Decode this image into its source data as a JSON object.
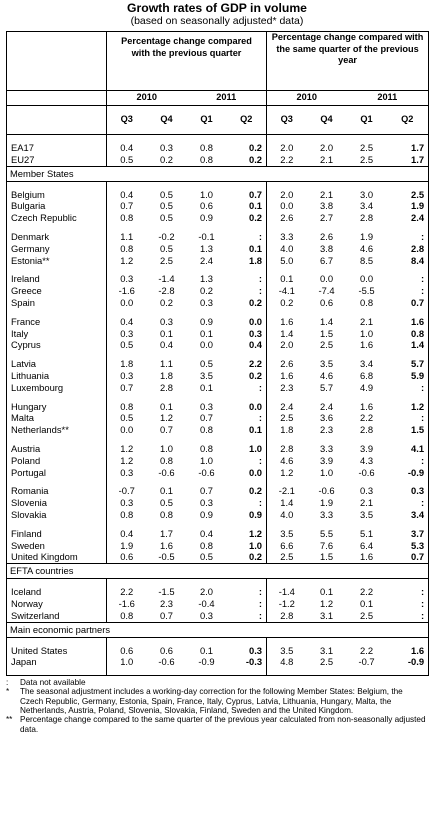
{
  "title": "Growth rates of GDP in volume",
  "subtitle": "(based on seasonally adjusted* data)",
  "headers": {
    "group1": "Percentage change compared with the previous quarter",
    "group2": "Percentage change compared with the same quarter of the previous year",
    "years": [
      "2010",
      "2011",
      "2010",
      "2011"
    ],
    "quarters": [
      "Q3",
      "Q4",
      "Q1",
      "Q2",
      "Q3",
      "Q4",
      "Q1",
      "Q2"
    ]
  },
  "sections": [
    {
      "label": "",
      "groups": [
        [
          {
            "name": "EA17",
            "v": [
              "0.4",
              "0.3",
              "0.8",
              "0.2",
              "2.0",
              "2.0",
              "2.5",
              "1.7"
            ]
          },
          {
            "name": "EU27",
            "v": [
              "0.5",
              "0.2",
              "0.8",
              "0.2",
              "2.2",
              "2.1",
              "2.5",
              "1.7"
            ]
          }
        ]
      ]
    },
    {
      "label": "Member States",
      "groups": [
        [
          {
            "name": "Belgium",
            "v": [
              "0.4",
              "0.5",
              "1.0",
              "0.7",
              "2.0",
              "2.1",
              "3.0",
              "2.5"
            ]
          },
          {
            "name": "Bulgaria",
            "v": [
              "0.7",
              "0.5",
              "0.6",
              "0.1",
              "0.0",
              "3.8",
              "3.4",
              "1.9"
            ]
          },
          {
            "name": "Czech Republic",
            "v": [
              "0.8",
              "0.5",
              "0.9",
              "0.2",
              "2.6",
              "2.7",
              "2.8",
              "2.4"
            ]
          }
        ],
        [
          {
            "name": "Denmark",
            "v": [
              "1.1",
              "-0.2",
              "-0.1",
              ":",
              "3.3",
              "2.6",
              "1.9",
              ":"
            ]
          },
          {
            "name": "Germany",
            "v": [
              "0.8",
              "0.5",
              "1.3",
              "0.1",
              "4.0",
              "3.8",
              "4.6",
              "2.8"
            ]
          },
          {
            "name": "Estonia**",
            "v": [
              "1.2",
              "2.5",
              "2.4",
              "1.8",
              "5.0",
              "6.7",
              "8.5",
              "8.4"
            ]
          }
        ],
        [
          {
            "name": "Ireland",
            "v": [
              "0.3",
              "-1.4",
              "1.3",
              ":",
              "0.1",
              "0.0",
              "0.0",
              ":"
            ]
          },
          {
            "name": "Greece",
            "v": [
              "-1.6",
              "-2.8",
              "0.2",
              ":",
              "-4.1",
              "-7.4",
              "-5.5",
              ":"
            ]
          },
          {
            "name": "Spain",
            "v": [
              "0.0",
              "0.2",
              "0.3",
              "0.2",
              "0.2",
              "0.6",
              "0.8",
              "0.7"
            ]
          }
        ],
        [
          {
            "name": "France",
            "v": [
              "0.4",
              "0.3",
              "0.9",
              "0.0",
              "1.6",
              "1.4",
              "2.1",
              "1.6"
            ]
          },
          {
            "name": "Italy",
            "v": [
              "0.3",
              "0.1",
              "0.1",
              "0.3",
              "1.4",
              "1.5",
              "1.0",
              "0.8"
            ]
          },
          {
            "name": "Cyprus",
            "v": [
              "0.5",
              "0.4",
              "0.0",
              "0.4",
              "2.0",
              "2.5",
              "1.6",
              "1.4"
            ]
          }
        ],
        [
          {
            "name": "Latvia",
            "v": [
              "1.8",
              "1.1",
              "0.5",
              "2.2",
              "2.6",
              "3.5",
              "3.4",
              "5.7"
            ]
          },
          {
            "name": "Lithuania",
            "v": [
              "0.3",
              "1.8",
              "3.5",
              "0.2",
              "1.6",
              "4.6",
              "6.8",
              "5.9"
            ]
          },
          {
            "name": "Luxembourg",
            "v": [
              "0.7",
              "2.8",
              "0.1",
              ":",
              "2.3",
              "5.7",
              "4.9",
              ":"
            ]
          }
        ],
        [
          {
            "name": "Hungary",
            "v": [
              "0.8",
              "0.1",
              "0.3",
              "0.0",
              "2.4",
              "2.4",
              "1.6",
              "1.2"
            ]
          },
          {
            "name": "Malta",
            "v": [
              "0.5",
              "1.2",
              "0.7",
              ":",
              "2.5",
              "3.6",
              "2.2",
              ":"
            ]
          },
          {
            "name": "Netherlands**",
            "v": [
              "0.0",
              "0.7",
              "0.8",
              "0.1",
              "1.8",
              "2.3",
              "2.8",
              "1.5"
            ]
          }
        ],
        [
          {
            "name": "Austria",
            "v": [
              "1.2",
              "1.0",
              "0.8",
              "1.0",
              "2.8",
              "3.3",
              "3.9",
              "4.1"
            ]
          },
          {
            "name": "Poland",
            "v": [
              "1.2",
              "0.8",
              "1.0",
              ":",
              "4.6",
              "3.9",
              "4.3",
              ":"
            ]
          },
          {
            "name": "Portugal",
            "v": [
              "0.3",
              "-0.6",
              "-0.6",
              "0.0",
              "1.2",
              "1.0",
              "-0.6",
              "-0.9"
            ]
          }
        ],
        [
          {
            "name": "Romania",
            "v": [
              "-0.7",
              "0.1",
              "0.7",
              "0.2",
              "-2.1",
              "-0.6",
              "0.3",
              "0.3"
            ]
          },
          {
            "name": "Slovenia",
            "v": [
              "0.3",
              "0.5",
              "0.3",
              ":",
              "1.4",
              "1.9",
              "2.1",
              ":"
            ]
          },
          {
            "name": "Slovakia",
            "v": [
              "0.8",
              "0.8",
              "0.9",
              "0.9",
              "4.0",
              "3.3",
              "3.5",
              "3.4"
            ]
          }
        ],
        [
          {
            "name": "Finland",
            "v": [
              "0.4",
              "1.7",
              "0.4",
              "1.2",
              "3.5",
              "5.5",
              "5.1",
              "3.7"
            ]
          },
          {
            "name": "Sweden",
            "v": [
              "1.9",
              "1.6",
              "0.8",
              "1.0",
              "6.6",
              "7.6",
              "6.4",
              "5.3"
            ]
          },
          {
            "name": "United Kingdom",
            "v": [
              "0.6",
              "-0.5",
              "0.5",
              "0.2",
              "2.5",
              "1.5",
              "1.6",
              "0.7"
            ]
          }
        ]
      ]
    },
    {
      "label": "EFTA countries",
      "groups": [
        [
          {
            "name": "Iceland",
            "v": [
              "2.2",
              "-1.5",
              "2.0",
              ":",
              "-1.4",
              "0.1",
              "2.2",
              ":"
            ]
          },
          {
            "name": "Norway",
            "v": [
              "-1.6",
              "2.3",
              "-0.4",
              ":",
              "-1.2",
              "1.2",
              "0.1",
              ":"
            ]
          },
          {
            "name": "Switzerland",
            "v": [
              "0.8",
              "0.7",
              "0.3",
              ":",
              "2.8",
              "3.1",
              "2.5",
              ":"
            ]
          }
        ]
      ]
    },
    {
      "label": "Main economic partners",
      "groups": [
        [
          {
            "name": "United States",
            "v": [
              "0.6",
              "0.6",
              "0.1",
              "0.3",
              "3.5",
              "3.1",
              "2.2",
              "1.6"
            ]
          },
          {
            "name": "Japan",
            "v": [
              "1.0",
              "-0.6",
              "-0.9",
              "-0.3",
              "4.8",
              "2.5",
              "-0.7",
              "-0.9"
            ]
          }
        ]
      ]
    }
  ],
  "notes": [
    {
      "sym": ":",
      "text": "Data not available"
    },
    {
      "sym": "*",
      "text": "The seasonal adjustment includes a working-day correction for the following Member States: Belgium, the Czech Republic, Germany, Estonia, Spain, France, Italy, Cyprus, Latvia, Lithuania, Hungary, Malta, the Netherlands, Austria, Poland, Slovenia, Slovakia, Finland, Sweden and the United Kingdom."
    },
    {
      "sym": "**",
      "text": "Percentage change compared to the same quarter of the previous year calculated from non-seasonally adjusted data."
    }
  ]
}
